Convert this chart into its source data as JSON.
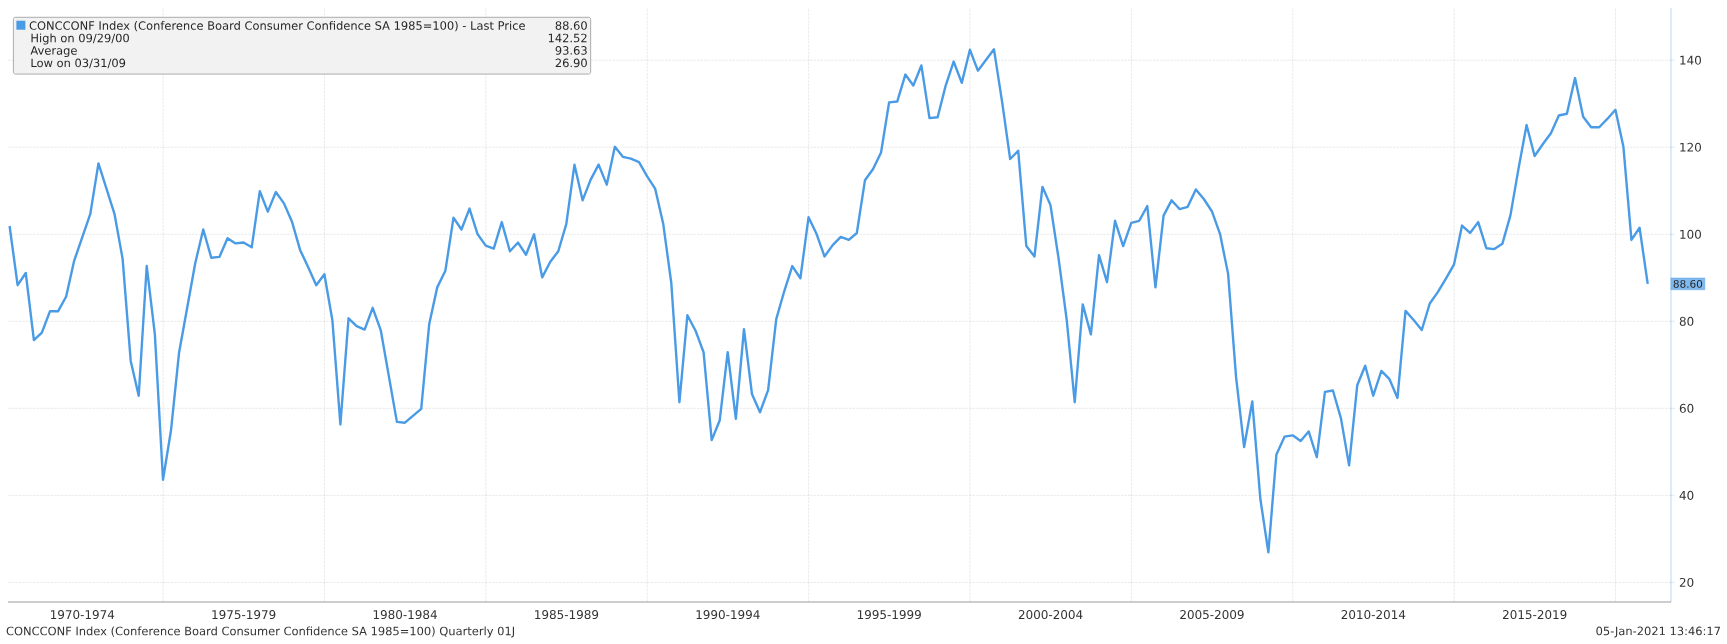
{
  "chart_data": {
    "type": "line",
    "x": [
      "1970-03-31",
      "1970-06-30",
      "1970-09-30",
      "1970-12-31",
      "1971-03-31",
      "1971-06-30",
      "1971-09-30",
      "1971-12-31",
      "1972-03-31",
      "1972-09-30",
      "1972-12-31",
      "1973-06-30",
      "1973-09-30",
      "1973-12-31",
      "1974-03-31",
      "1974-06-30",
      "1974-09-30",
      "1974-12-31",
      "1975-03-31",
      "1975-06-30",
      "1975-12-31",
      "1976-03-31",
      "1976-06-30",
      "1976-09-30",
      "1976-12-31",
      "1977-03-31",
      "1977-06-30",
      "1977-09-30",
      "1977-12-31",
      "1978-03-31",
      "1978-06-30",
      "1978-09-30",
      "1978-12-31",
      "1979-03-31",
      "1979-06-30",
      "1979-09-30",
      "1979-12-31",
      "1980-03-31",
      "1980-06-30",
      "1980-09-30",
      "1980-12-31",
      "1981-03-31",
      "1981-06-30",
      "1981-09-30",
      "1982-03-31",
      "1982-06-30",
      "1982-12-31",
      "1983-03-31",
      "1983-06-30",
      "1983-09-30",
      "1983-12-31",
      "1984-03-31",
      "1984-06-30",
      "1984-09-30",
      "1984-12-31",
      "1985-03-31",
      "1985-06-30",
      "1985-09-30",
      "1985-12-31",
      "1986-03-31",
      "1986-06-30",
      "1986-09-30",
      "1986-12-31",
      "1987-03-31",
      "1987-06-30",
      "1987-09-30",
      "1987-12-31",
      "1988-03-31",
      "1988-06-30",
      "1988-09-30",
      "1988-12-31",
      "1989-03-31",
      "1989-06-30",
      "1989-09-30",
      "1989-12-31",
      "1990-03-31",
      "1990-06-30",
      "1990-09-30",
      "1990-12-31",
      "1991-03-31",
      "1991-06-30",
      "1991-09-30",
      "1991-12-31",
      "1992-03-31",
      "1992-06-30",
      "1992-09-30",
      "1992-12-31",
      "1993-03-31",
      "1993-06-30",
      "1993-09-30",
      "1993-12-31",
      "1994-03-31",
      "1994-06-30",
      "1994-09-30",
      "1994-12-31",
      "1995-03-31",
      "1995-06-30",
      "1995-09-30",
      "1995-12-31",
      "1996-03-31",
      "1996-06-30",
      "1996-09-30",
      "1996-12-31",
      "1997-03-31",
      "1997-06-30",
      "1997-09-30",
      "1997-12-31",
      "1998-03-31",
      "1998-06-30",
      "1998-09-30",
      "1998-12-31",
      "1999-03-31",
      "1999-06-30",
      "1999-09-30",
      "1999-12-31",
      "2000-03-31",
      "2000-09-29",
      "2000-12-31",
      "2001-03-31",
      "2001-06-30",
      "2001-09-30",
      "2001-12-31",
      "2002-03-31",
      "2002-06-30",
      "2002-09-30",
      "2002-12-31",
      "2003-03-31",
      "2003-06-30",
      "2003-09-30",
      "2003-12-31",
      "2004-03-31",
      "2004-06-30",
      "2004-09-30",
      "2004-12-31",
      "2005-03-31",
      "2005-06-30",
      "2005-09-30",
      "2005-12-31",
      "2006-03-31",
      "2006-06-30",
      "2006-09-30",
      "2006-12-31",
      "2007-03-31",
      "2007-06-30",
      "2007-09-30",
      "2007-12-31",
      "2008-03-31",
      "2008-06-30",
      "2008-09-30",
      "2008-12-31",
      "2009-03-31",
      "2009-06-30",
      "2009-09-30",
      "2009-12-31",
      "2010-03-31",
      "2010-06-30",
      "2010-09-30",
      "2010-12-31",
      "2011-03-31",
      "2011-06-30",
      "2011-09-30",
      "2011-12-31",
      "2012-03-31",
      "2012-06-30",
      "2012-09-30",
      "2012-12-31",
      "2013-03-31",
      "2013-06-30",
      "2013-09-30",
      "2013-12-31",
      "2014-03-31",
      "2014-06-30",
      "2014-09-30",
      "2014-12-31",
      "2015-03-31",
      "2015-06-30",
      "2015-09-30",
      "2015-12-31",
      "2016-03-31",
      "2016-06-30",
      "2016-09-30",
      "2016-12-31",
      "2017-03-31",
      "2017-06-30",
      "2017-09-30",
      "2017-12-31",
      "2018-03-31",
      "2018-06-30",
      "2018-09-30",
      "2018-12-31",
      "2019-03-31",
      "2019-06-30",
      "2019-09-30",
      "2019-12-31",
      "2020-03-31",
      "2020-06-30",
      "2020-09-30",
      "2020-12-31"
    ],
    "series": [
      {
        "name": "CONCCONF Index (Conference Board Consumer Confidence SA 1985=100) - Last Price",
        "color": "#4a9be6",
        "values": [
          101.9,
          88.3,
          91.1,
          75.7,
          77.4,
          82.3,
          82.3,
          85.7,
          93.9,
          104.7,
          116.3,
          104.7,
          94.4,
          70.9,
          62.9,
          92.7,
          77.0,
          43.6,
          54.9,
          72.7,
          93.4,
          101.1,
          94.6,
          94.8,
          99.1,
          97.9,
          98.1,
          97.0,
          109.9,
          105.2,
          109.7,
          107.1,
          102.8,
          96.4,
          92.5,
          88.3,
          90.8,
          80.3,
          56.3,
          80.7,
          78.9,
          78.1,
          83.1,
          77.9,
          56.9,
          56.7,
          59.9,
          79.3,
          87.8,
          91.6,
          103.8,
          101.1,
          105.9,
          100.0,
          97.4,
          96.7,
          102.8,
          96.1,
          98.1,
          95.3,
          100.0,
          90.1,
          93.7,
          96.1,
          102.4,
          116.0,
          107.8,
          112.5,
          116.0,
          111.4,
          120.1,
          117.8,
          117.4,
          116.6,
          113.3,
          110.5,
          102.5,
          88.8,
          61.4,
          81.4,
          77.9,
          72.9,
          52.7,
          57.2,
          72.9,
          57.6,
          78.2,
          63.3,
          59.1,
          64.2,
          80.5,
          86.9,
          92.7,
          89.9,
          103.9,
          100.1,
          94.9,
          97.5,
          99.4,
          98.7,
          100.3,
          112.4,
          115.0,
          118.8,
          130.3,
          130.5,
          136.7,
          134.2,
          138.8,
          126.7,
          126.9,
          134.1,
          139.7,
          134.8,
          142.4,
          137.6,
          142.5,
          130.3,
          117.3,
          119.2,
          97.3,
          94.9,
          110.9,
          106.7,
          94.4,
          80.3,
          61.4,
          83.9,
          77.0,
          95.2,
          89.0,
          103.1,
          97.3,
          102.6,
          103.1,
          106.5,
          87.8,
          104.3,
          107.8,
          105.8,
          106.3,
          110.3,
          108.1,
          105.3,
          100.1,
          90.9,
          67.1,
          51.1,
          61.6,
          39.1,
          26.9,
          49.4,
          53.5,
          53.8,
          52.5,
          54.7,
          48.8,
          63.8,
          64.1,
          57.7,
          46.9,
          65.3,
          69.8,
          62.9,
          68.6,
          66.7,
          62.4,
          82.4,
          80.3,
          78.0,
          84.1,
          86.7,
          89.8,
          93.1,
          102.0,
          100.3,
          102.8,
          96.8,
          96.6,
          97.8,
          104.4,
          115.2,
          125.1,
          118.0,
          120.7,
          123.2,
          127.3,
          127.7,
          135.9,
          127.0,
          124.6,
          124.6,
          126.5,
          128.6,
          120.1,
          98.7,
          101.5,
          88.6
        ]
      }
    ],
    "xlim": [
      "1970-03-13",
      "2021-09-20"
    ],
    "xticks": [
      {
        "value": "1972-07-01",
        "label": "1970-1974"
      },
      {
        "value": "1975",
        "label": null
      },
      {
        "value": "1977-07-01",
        "label": "1975-1979"
      },
      {
        "value": "1980",
        "label": null
      },
      {
        "value": "1982-07-01",
        "label": "1980-1984"
      },
      {
        "value": "1985",
        "label": null
      },
      {
        "value": "1987-07-01",
        "label": "1985-1989"
      },
      {
        "value": "1990",
        "label": null
      },
      {
        "value": "1992-07-01",
        "label": "1990-1994"
      },
      {
        "value": "1995",
        "label": null
      },
      {
        "value": "1997-07-01",
        "label": "1995-1999"
      },
      {
        "value": "2000",
        "label": null
      },
      {
        "value": "2002-07-01",
        "label": "2000-2004"
      },
      {
        "value": "2005",
        "label": null
      },
      {
        "value": "2007-07-01",
        "label": "2005-2009"
      },
      {
        "value": "2010",
        "label": null
      },
      {
        "value": "2012-07-01",
        "label": "2010-2014"
      },
      {
        "value": "2015",
        "label": null
      },
      {
        "value": "2017-07-01",
        "label": "2015-2019"
      },
      {
        "value": "2020",
        "label": null
      }
    ],
    "ylim": [
      15.5,
      152
    ],
    "yticks": [
      20,
      40,
      60,
      80,
      100,
      120,
      140
    ],
    "grid": true,
    "legend": "top left",
    "annotations": [
      "88.60",
      "High on 09/29/00",
      "142.52",
      "Average",
      "93.63",
      "Low on 03/31/09",
      "26.90",
      "CONCCONF Index (Conference Board Consumer Confidence SA 1985=100)  Quarterly 01J",
      "05-Jan-2021 13:46:17",
      {
        "text": "88.60",
        "x": "2020-12-31",
        "y": 88.6
      }
    ]
  }
}
